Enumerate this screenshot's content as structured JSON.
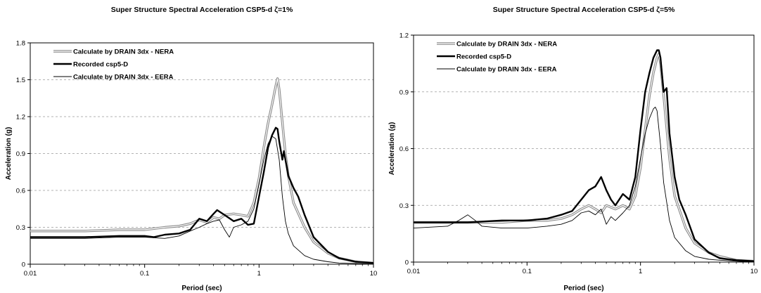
{
  "chart_data": [
    {
      "type": "line",
      "title": "Super Structure Spectral Acceleration CSP5-d ζ=1%",
      "xlabel": "Period (sec)",
      "ylabel": "Acceleration (g)",
      "xscale": "log",
      "xlim": [
        0.01,
        10
      ],
      "ylim": [
        0,
        1.8
      ],
      "xticks": [
        "0.01",
        "0.1",
        "1",
        "10"
      ],
      "yticks": [
        "0",
        "0.3",
        "0.6",
        "0.9",
        "1.2",
        "1.5",
        "1.8"
      ],
      "grid": "horizontal dashed",
      "legend": "top-left",
      "series": [
        {
          "name": "Calculate by DRAIN 3dx - NERA",
          "style": "grey-double",
          "x": [
            0.01,
            0.03,
            0.06,
            0.1,
            0.15,
            0.2,
            0.25,
            0.3,
            0.35,
            0.4,
            0.45,
            0.5,
            0.6,
            0.7,
            0.8,
            0.9,
            1.0,
            1.1,
            1.2,
            1.3,
            1.4,
            1.45,
            1.5,
            1.6,
            1.7,
            1.8,
            2.0,
            2.5,
            3,
            4,
            5,
            7,
            10
          ],
          "y": [
            0.27,
            0.27,
            0.28,
            0.28,
            0.3,
            0.31,
            0.33,
            0.36,
            0.34,
            0.38,
            0.37,
            0.4,
            0.41,
            0.4,
            0.39,
            0.5,
            0.7,
            0.95,
            1.15,
            1.3,
            1.45,
            1.51,
            1.42,
            1.15,
            0.9,
            0.72,
            0.5,
            0.3,
            0.18,
            0.09,
            0.05,
            0.02,
            0.01
          ]
        },
        {
          "name": "Recorded csp5-D",
          "style": "thick-black",
          "x": [
            0.01,
            0.03,
            0.06,
            0.1,
            0.12,
            0.15,
            0.2,
            0.25,
            0.3,
            0.35,
            0.4,
            0.43,
            0.5,
            0.6,
            0.7,
            0.8,
            0.9,
            1.0,
            1.1,
            1.2,
            1.3,
            1.4,
            1.45,
            1.5,
            1.6,
            1.65,
            1.7,
            1.8,
            2.0,
            2.2,
            2.5,
            3,
            4,
            5,
            7,
            10
          ],
          "y": [
            0.22,
            0.22,
            0.23,
            0.23,
            0.22,
            0.24,
            0.25,
            0.28,
            0.37,
            0.35,
            0.41,
            0.44,
            0.4,
            0.35,
            0.37,
            0.32,
            0.33,
            0.55,
            0.75,
            0.95,
            1.05,
            1.11,
            1.1,
            1.0,
            0.85,
            0.92,
            0.85,
            0.72,
            0.62,
            0.55,
            0.4,
            0.22,
            0.1,
            0.05,
            0.02,
            0.01
          ]
        },
        {
          "name": "Calculate by DRAIN 3dx - EERA",
          "style": "thin-black",
          "x": [
            0.01,
            0.03,
            0.06,
            0.1,
            0.15,
            0.2,
            0.25,
            0.3,
            0.35,
            0.4,
            0.45,
            0.5,
            0.55,
            0.6,
            0.7,
            0.8,
            0.9,
            1.0,
            1.1,
            1.2,
            1.3,
            1.4,
            1.5,
            1.6,
            1.7,
            1.8,
            2.0,
            2.5,
            3,
            4,
            5,
            7,
            10
          ],
          "y": [
            0.21,
            0.21,
            0.22,
            0.22,
            0.21,
            0.23,
            0.27,
            0.3,
            0.33,
            0.35,
            0.36,
            0.28,
            0.22,
            0.3,
            0.32,
            0.35,
            0.45,
            0.65,
            0.85,
            0.98,
            1.04,
            1.02,
            0.85,
            0.55,
            0.35,
            0.25,
            0.15,
            0.07,
            0.04,
            0.02,
            0.01,
            0.005,
            0.0
          ]
        }
      ]
    },
    {
      "type": "line",
      "title": "Super Structure Spectral Acceleration CSP5-d ζ=5%",
      "xlabel": "Period (sec)",
      "ylabel": "Acceleration (g)",
      "xscale": "log",
      "xlim": [
        0.01,
        10
      ],
      "ylim": [
        0,
        1.2
      ],
      "xticks": [
        "0.01",
        "0.1",
        "1",
        "10"
      ],
      "yticks": [
        "0",
        "0.3",
        "0.6",
        "0.9",
        "1.2"
      ],
      "grid": "horizontal dashed",
      "legend": "top-left",
      "series": [
        {
          "name": "Calculate by DRAIN 3dx - NERA",
          "style": "grey-double",
          "x": [
            0.01,
            0.03,
            0.06,
            0.1,
            0.15,
            0.2,
            0.25,
            0.3,
            0.35,
            0.4,
            0.45,
            0.5,
            0.6,
            0.7,
            0.8,
            0.9,
            1.0,
            1.1,
            1.2,
            1.3,
            1.4,
            1.45,
            1.5,
            1.6,
            1.8,
            2.0,
            2.5,
            3,
            4,
            5,
            7,
            10
          ],
          "y": [
            0.21,
            0.21,
            0.21,
            0.22,
            0.22,
            0.23,
            0.25,
            0.28,
            0.3,
            0.28,
            0.26,
            0.3,
            0.28,
            0.3,
            0.28,
            0.35,
            0.5,
            0.7,
            0.88,
            1.0,
            1.08,
            1.1,
            1.05,
            0.88,
            0.55,
            0.35,
            0.18,
            0.1,
            0.05,
            0.03,
            0.01,
            0.005
          ]
        },
        {
          "name": "Recorded csp5-D",
          "style": "thick-black",
          "x": [
            0.01,
            0.03,
            0.06,
            0.1,
            0.15,
            0.2,
            0.25,
            0.3,
            0.35,
            0.4,
            0.45,
            0.5,
            0.55,
            0.6,
            0.7,
            0.8,
            0.9,
            1.0,
            1.1,
            1.2,
            1.3,
            1.4,
            1.45,
            1.5,
            1.6,
            1.7,
            1.75,
            1.8,
            2.0,
            2.2,
            2.5,
            3,
            4,
            5,
            7,
            10
          ],
          "y": [
            0.21,
            0.21,
            0.22,
            0.22,
            0.23,
            0.25,
            0.27,
            0.33,
            0.38,
            0.4,
            0.45,
            0.38,
            0.33,
            0.3,
            0.36,
            0.33,
            0.45,
            0.7,
            0.9,
            1.0,
            1.08,
            1.12,
            1.12,
            1.08,
            0.9,
            0.92,
            0.8,
            0.68,
            0.45,
            0.33,
            0.25,
            0.12,
            0.05,
            0.02,
            0.01,
            0.005
          ]
        },
        {
          "name": "Calculate by DRAIN 3dx - EERA",
          "style": "thin-black",
          "x": [
            0.01,
            0.02,
            0.025,
            0.03,
            0.035,
            0.04,
            0.06,
            0.1,
            0.15,
            0.2,
            0.25,
            0.3,
            0.35,
            0.4,
            0.45,
            0.5,
            0.55,
            0.6,
            0.7,
            0.8,
            0.9,
            1.0,
            1.1,
            1.2,
            1.3,
            1.35,
            1.4,
            1.5,
            1.6,
            1.8,
            2.0,
            2.5,
            3,
            4,
            5,
            7,
            10
          ],
          "y": [
            0.18,
            0.19,
            0.22,
            0.25,
            0.22,
            0.19,
            0.18,
            0.18,
            0.19,
            0.2,
            0.22,
            0.26,
            0.27,
            0.25,
            0.28,
            0.2,
            0.24,
            0.22,
            0.26,
            0.3,
            0.4,
            0.55,
            0.68,
            0.76,
            0.81,
            0.82,
            0.8,
            0.62,
            0.42,
            0.22,
            0.13,
            0.06,
            0.03,
            0.015,
            0.01,
            0.005,
            0.0
          ]
        }
      ]
    }
  ]
}
